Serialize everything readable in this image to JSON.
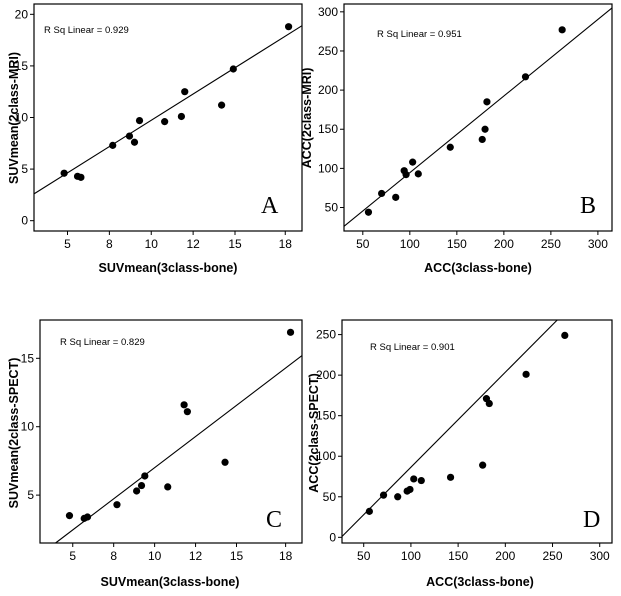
{
  "chart_data": [
    {
      "type": "scatter",
      "panel_label": "A",
      "annotation": "R Sq Linear = 0.929",
      "xlabel": "SUVmean(3class-bone)",
      "ylabel": "SUVmean(2class-MRI)",
      "x_ticks": [
        "5",
        "8",
        "10",
        "12",
        "15",
        "18"
      ],
      "y_ticks": [
        "0",
        "5",
        "10",
        "15",
        "20"
      ],
      "xlim": [
        3,
        19
      ],
      "ylim": [
        -1,
        21
      ],
      "x_tick_values": [
        5,
        7.5,
        10,
        12.5,
        15,
        18
      ],
      "y_tick_values": [
        0,
        5,
        10,
        15,
        20
      ],
      "points": [
        {
          "x": 4.8,
          "y": 4.6
        },
        {
          "x": 5.6,
          "y": 4.3
        },
        {
          "x": 5.8,
          "y": 4.2
        },
        {
          "x": 7.7,
          "y": 7.3
        },
        {
          "x": 8.7,
          "y": 8.2
        },
        {
          "x": 9.0,
          "y": 7.6
        },
        {
          "x": 9.3,
          "y": 9.7
        },
        {
          "x": 10.8,
          "y": 9.6
        },
        {
          "x": 11.8,
          "y": 10.1
        },
        {
          "x": 12.0,
          "y": 12.5
        },
        {
          "x": 14.2,
          "y": 11.2
        },
        {
          "x": 14.9,
          "y": 14.7
        },
        {
          "x": 18.2,
          "y": 18.8
        }
      ],
      "fit_line": {
        "x": [
          3,
          19
        ],
        "y": [
          2.6,
          18.9
        ]
      }
    },
    {
      "type": "scatter",
      "panel_label": "B",
      "annotation": "R Sq Linear = 0.951",
      "xlabel": "ACC(3class-bone)",
      "ylabel": "ACC(2class-MRI)",
      "x_ticks": [
        "50",
        "100",
        "150",
        "200",
        "250",
        "300"
      ],
      "y_ticks": [
        "50",
        "100",
        "150",
        "200",
        "250",
        "300"
      ],
      "xlim": [
        30,
        315
      ],
      "ylim": [
        20,
        310
      ],
      "x_tick_values": [
        50,
        100,
        150,
        200,
        250,
        300
      ],
      "y_tick_values": [
        50,
        100,
        150,
        200,
        250,
        300
      ],
      "points": [
        {
          "x": 56,
          "y": 44
        },
        {
          "x": 70,
          "y": 68
        },
        {
          "x": 85,
          "y": 63
        },
        {
          "x": 94,
          "y": 97
        },
        {
          "x": 96,
          "y": 92
        },
        {
          "x": 103,
          "y": 108
        },
        {
          "x": 109,
          "y": 93
        },
        {
          "x": 143,
          "y": 127
        },
        {
          "x": 177,
          "y": 137
        },
        {
          "x": 180,
          "y": 150
        },
        {
          "x": 182,
          "y": 185
        },
        {
          "x": 223,
          "y": 217
        },
        {
          "x": 262,
          "y": 277
        }
      ],
      "fit_line": {
        "x": [
          30,
          315
        ],
        "y": [
          26,
          305
        ]
      }
    },
    {
      "type": "scatter",
      "panel_label": "C",
      "annotation": "R Sq Linear = 0.829",
      "xlabel": "SUVmean(3class-bone)",
      "ylabel": "SUVmean(2class-SPECT)",
      "x_ticks": [
        "5",
        "8",
        "10",
        "12",
        "15",
        "18"
      ],
      "y_ticks": [
        "5",
        "10",
        "15"
      ],
      "xlim": [
        3,
        19
      ],
      "ylim": [
        1.5,
        17.8
      ],
      "x_tick_values": [
        5,
        7.5,
        10,
        12.5,
        15,
        18
      ],
      "y_tick_values": [
        5,
        10,
        15
      ],
      "points": [
        {
          "x": 4.8,
          "y": 3.5
        },
        {
          "x": 5.7,
          "y": 3.3
        },
        {
          "x": 5.9,
          "y": 3.4
        },
        {
          "x": 7.7,
          "y": 4.3
        },
        {
          "x": 8.9,
          "y": 5.3
        },
        {
          "x": 9.2,
          "y": 5.7
        },
        {
          "x": 9.4,
          "y": 6.4
        },
        {
          "x": 10.8,
          "y": 5.6
        },
        {
          "x": 11.8,
          "y": 11.6
        },
        {
          "x": 12.0,
          "y": 11.1
        },
        {
          "x": 14.3,
          "y": 7.4
        },
        {
          "x": 18.3,
          "y": 16.9
        }
      ],
      "fit_line": {
        "x": [
          3.95,
          19
        ],
        "y": [
          1.5,
          15.2
        ]
      }
    },
    {
      "type": "scatter",
      "panel_label": "D",
      "annotation": "R Sq Linear = 0.901",
      "xlabel": "ACC(3class-bone)",
      "ylabel": "ACC(2class-SPECT)",
      "x_ticks": [
        "50",
        "100",
        "150",
        "200",
        "250",
        "300"
      ],
      "y_ticks": [
        "0",
        "50",
        "100",
        "150",
        "200",
        "250"
      ],
      "xlim": [
        27,
        313
      ],
      "ylim": [
        -7,
        268
      ],
      "x_tick_values": [
        50,
        100,
        150,
        200,
        250,
        300
      ],
      "y_tick_values": [
        0,
        50,
        100,
        150,
        200,
        250
      ],
      "points": [
        {
          "x": 56,
          "y": 32
        },
        {
          "x": 71,
          "y": 52
        },
        {
          "x": 86,
          "y": 50
        },
        {
          "x": 96,
          "y": 57
        },
        {
          "x": 99,
          "y": 59
        },
        {
          "x": 103,
          "y": 72
        },
        {
          "x": 111,
          "y": 70
        },
        {
          "x": 142,
          "y": 74
        },
        {
          "x": 176,
          "y": 89
        },
        {
          "x": 180,
          "y": 171
        },
        {
          "x": 183,
          "y": 165
        },
        {
          "x": 222,
          "y": 201
        },
        {
          "x": 263,
          "y": 249
        }
      ],
      "fit_line": {
        "x": [
          27,
          255
        ],
        "y": [
          1,
          268
        ]
      }
    }
  ]
}
